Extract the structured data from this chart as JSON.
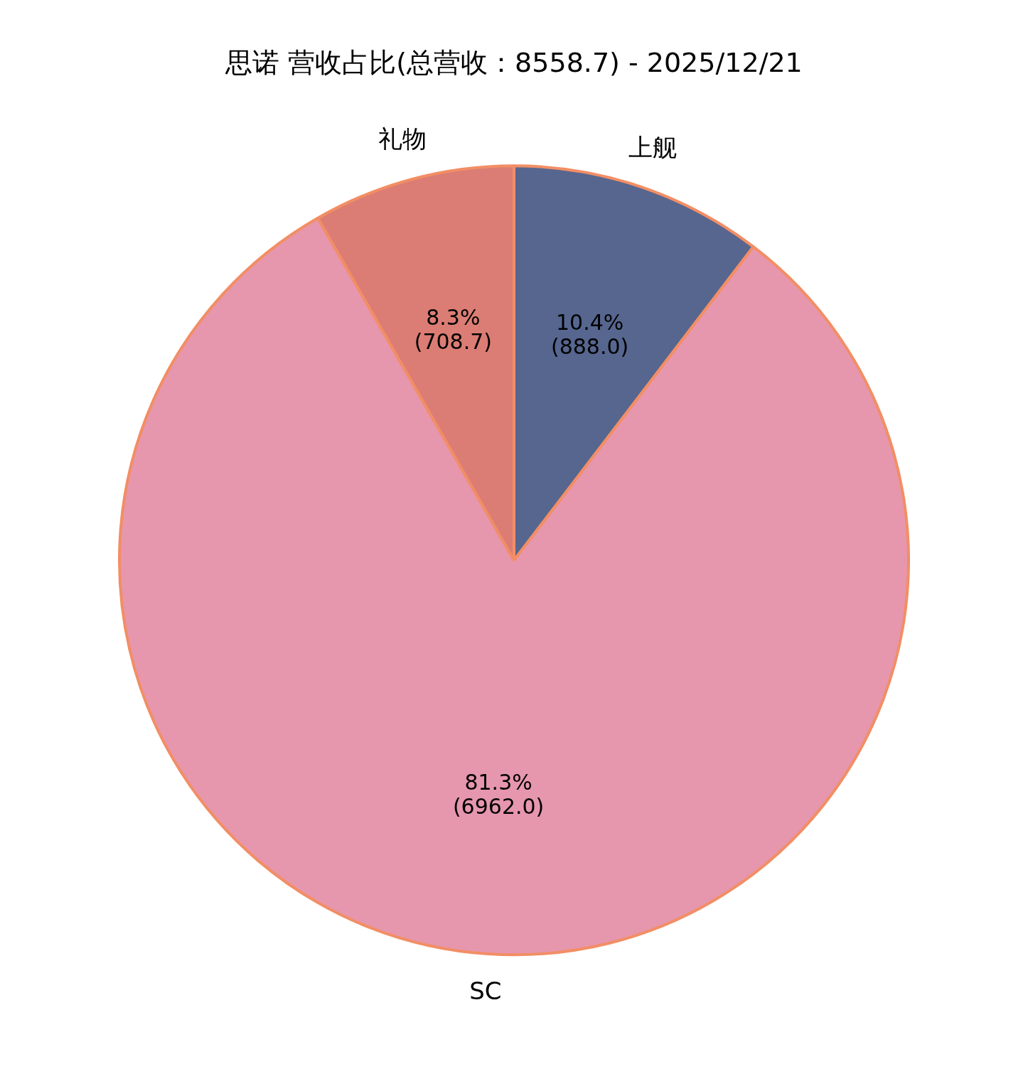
{
  "chart_data": {
    "type": "pie",
    "title": "思诺 营收占比(总营收：8558.7) - 2025/12/21",
    "categories": [
      "上舰",
      "SC",
      "礼物"
    ],
    "values": [
      888.0,
      6962.0,
      708.7
    ],
    "colors": [
      "#56668f",
      "#e697ad",
      "#db7d74"
    ],
    "value_labels": [
      "10.4%\n(888.0)",
      "81.3%\n(6962.0)",
      "8.3%\n(708.7)"
    ]
  }
}
